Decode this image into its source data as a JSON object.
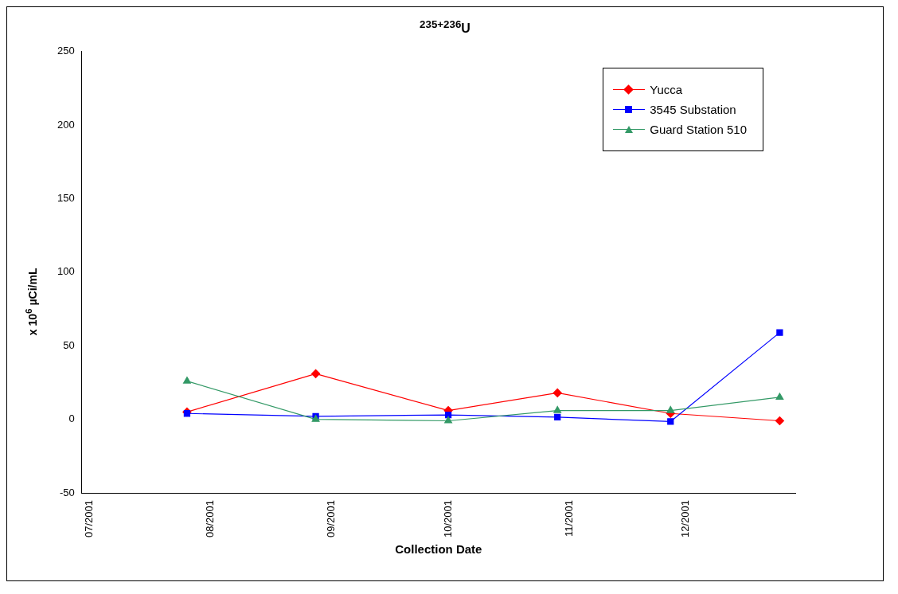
{
  "chart_data": {
    "type": "line",
    "title": "$^{235+236}$U",
    "xlabel": "Collection Date",
    "ylabel": "x 10$^{6}$ µCi/mL",
    "x": [
      "2001-07-26",
      "2001-08-28",
      "2001-10-01",
      "2001-10-29",
      "2001-11-27",
      "2001-12-25"
    ],
    "series": [
      {
        "name": "Yucca",
        "color": "#ff0000",
        "marker": "diamond",
        "values": [
          5,
          31,
          6,
          18,
          4,
          -1
        ]
      },
      {
        "name": "3545 Substation",
        "color": "#0000ff",
        "marker": "square",
        "values": [
          4,
          2,
          3,
          1.5,
          -1.5,
          59
        ]
      },
      {
        "name": "Guard Station 510",
        "color": "#339966",
        "marker": "triangle",
        "values": [
          26,
          0,
          -1,
          6,
          6,
          15
        ]
      }
    ],
    "xlim": [
      "2001-06-29",
      "2001-12-29"
    ],
    "xticks": [
      {
        "value": "2001-07-01",
        "label": "07/2001"
      },
      {
        "value": "2001-08-01",
        "label": "08/2001"
      },
      {
        "value": "2001-09-01",
        "label": "09/2001"
      },
      {
        "value": "2001-10-01",
        "label": "10/2001"
      },
      {
        "value": "2001-11-01",
        "label": "11/2001"
      },
      {
        "value": "2001-12-01",
        "label": "12/2001"
      }
    ],
    "ylim": [
      -50,
      250
    ],
    "yticks": [
      -50,
      0,
      50,
      100,
      150,
      200,
      250
    ],
    "grid": false,
    "legend": "top right",
    "line_style": "solid"
  }
}
